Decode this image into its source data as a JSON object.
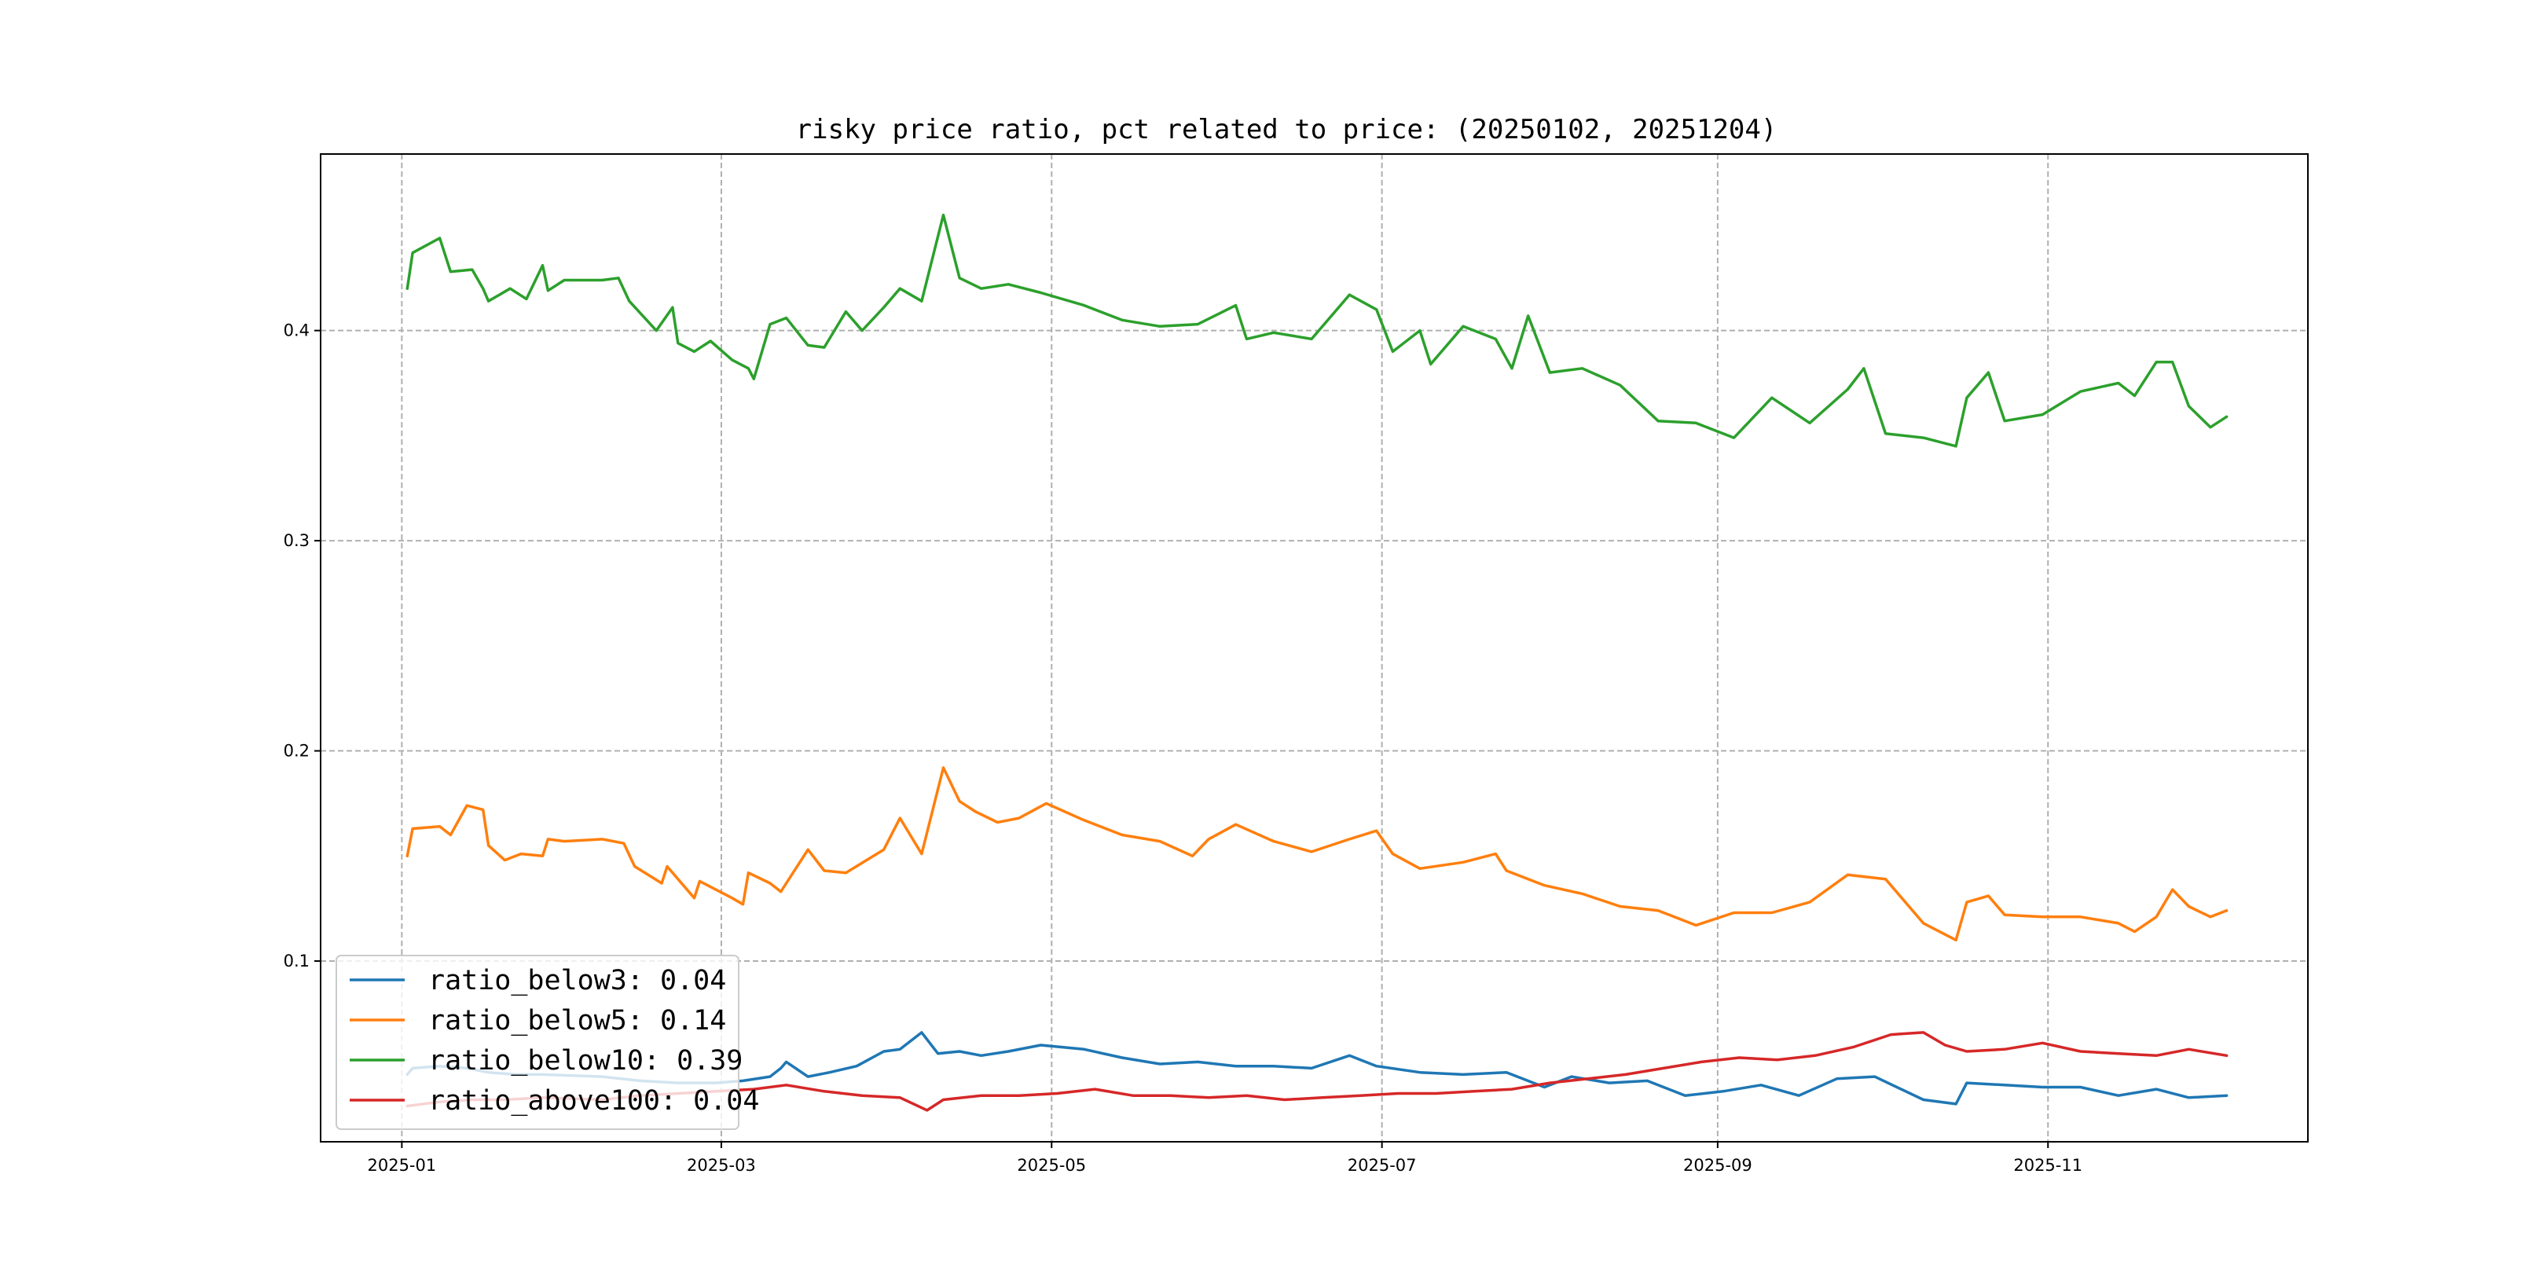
{
  "chart_data": {
    "type": "line",
    "title": "risky price ratio, pct related to price: (20250102, 20251204)",
    "xlabel": "",
    "ylabel": "",
    "x_range": [
      "2024-12-17",
      "2025-12-19"
    ],
    "ylim": [
      0.014,
      0.484
    ],
    "x_ticks": [
      "2025-01",
      "2025-03",
      "2025-05",
      "2025-07",
      "2025-09",
      "2025-11"
    ],
    "y_ticks": [
      "0.1",
      "0.2",
      "0.3",
      "0.4"
    ],
    "grid": true,
    "legend_position": "lower-left",
    "colors": {
      "ratio_below3": "#1f77b4",
      "ratio_below5": "#ff7f0e",
      "ratio_below10": "#2ca02c",
      "ratio_above100": "#d62728"
    },
    "series": [
      {
        "name": "ratio_below3",
        "legend": "ratio_below3: 0.04",
        "color": "#1f77b4",
        "points": [
          [
            "2025-01-02",
            0.046
          ],
          [
            "2025-01-03",
            0.049
          ],
          [
            "2025-01-08",
            0.05
          ],
          [
            "2025-01-13",
            0.049
          ],
          [
            "2025-01-17",
            0.047
          ],
          [
            "2025-01-22",
            0.046
          ],
          [
            "2025-01-27",
            0.046
          ],
          [
            "2025-02-07",
            0.045
          ],
          [
            "2025-02-14",
            0.043
          ],
          [
            "2025-02-21",
            0.042
          ],
          [
            "2025-02-28",
            0.042
          ],
          [
            "2025-03-05",
            0.043
          ],
          [
            "2025-03-10",
            0.045
          ],
          [
            "2025-03-12",
            0.049
          ],
          [
            "2025-03-13",
            0.052
          ],
          [
            "2025-03-17",
            0.045
          ],
          [
            "2025-03-21",
            0.047
          ],
          [
            "2025-03-26",
            0.05
          ],
          [
            "2025-03-31",
            0.057
          ],
          [
            "2025-04-03",
            0.058
          ],
          [
            "2025-04-07",
            0.066
          ],
          [
            "2025-04-10",
            0.056
          ],
          [
            "2025-04-14",
            0.057
          ],
          [
            "2025-04-18",
            0.055
          ],
          [
            "2025-04-23",
            0.057
          ],
          [
            "2025-04-29",
            0.06
          ],
          [
            "2025-05-07",
            0.058
          ],
          [
            "2025-05-14",
            0.054
          ],
          [
            "2025-05-21",
            0.051
          ],
          [
            "2025-05-28",
            0.052
          ],
          [
            "2025-06-04",
            0.05
          ],
          [
            "2025-06-11",
            0.05
          ],
          [
            "2025-06-18",
            0.049
          ],
          [
            "2025-06-25",
            0.055
          ],
          [
            "2025-06-30",
            0.05
          ],
          [
            "2025-07-08",
            0.047
          ],
          [
            "2025-07-16",
            0.046
          ],
          [
            "2025-07-24",
            0.047
          ],
          [
            "2025-07-31",
            0.04
          ],
          [
            "2025-08-05",
            0.045
          ],
          [
            "2025-08-12",
            0.042
          ],
          [
            "2025-08-19",
            0.043
          ],
          [
            "2025-08-26",
            0.036
          ],
          [
            "2025-09-02",
            0.038
          ],
          [
            "2025-09-09",
            0.041
          ],
          [
            "2025-09-16",
            0.036
          ],
          [
            "2025-09-23",
            0.044
          ],
          [
            "2025-09-30",
            0.045
          ],
          [
            "2025-10-09",
            0.034
          ],
          [
            "2025-10-15",
            0.032
          ],
          [
            "2025-10-17",
            0.042
          ],
          [
            "2025-10-24",
            0.041
          ],
          [
            "2025-10-31",
            0.04
          ],
          [
            "2025-11-07",
            0.04
          ],
          [
            "2025-11-14",
            0.036
          ],
          [
            "2025-11-21",
            0.039
          ],
          [
            "2025-11-27",
            0.035
          ],
          [
            "2025-12-04",
            0.036
          ]
        ]
      },
      {
        "name": "ratio_below5",
        "legend": "ratio_below5: 0.14",
        "color": "#ff7f0e",
        "points": [
          [
            "2025-01-02",
            0.15
          ],
          [
            "2025-01-03",
            0.163
          ],
          [
            "2025-01-08",
            0.164
          ],
          [
            "2025-01-10",
            0.16
          ],
          [
            "2025-01-13",
            0.174
          ],
          [
            "2025-01-16",
            0.172
          ],
          [
            "2025-01-17",
            0.155
          ],
          [
            "2025-01-20",
            0.148
          ],
          [
            "2025-01-23",
            0.151
          ],
          [
            "2025-01-27",
            0.15
          ],
          [
            "2025-01-28",
            0.158
          ],
          [
            "2025-01-31",
            0.157
          ],
          [
            "2025-02-07",
            0.158
          ],
          [
            "2025-02-11",
            0.156
          ],
          [
            "2025-02-13",
            0.145
          ],
          [
            "2025-02-18",
            0.137
          ],
          [
            "2025-02-19",
            0.145
          ],
          [
            "2025-02-24",
            0.13
          ],
          [
            "2025-02-25",
            0.138
          ],
          [
            "2025-03-03",
            0.13
          ],
          [
            "2025-03-05",
            0.127
          ],
          [
            "2025-03-06",
            0.142
          ],
          [
            "2025-03-10",
            0.137
          ],
          [
            "2025-03-12",
            0.133
          ],
          [
            "2025-03-17",
            0.153
          ],
          [
            "2025-03-20",
            0.143
          ],
          [
            "2025-03-24",
            0.142
          ],
          [
            "2025-03-31",
            0.153
          ],
          [
            "2025-04-03",
            0.168
          ],
          [
            "2025-04-07",
            0.151
          ],
          [
            "2025-04-11",
            0.192
          ],
          [
            "2025-04-14",
            0.176
          ],
          [
            "2025-04-17",
            0.171
          ],
          [
            "2025-04-21",
            0.166
          ],
          [
            "2025-04-25",
            0.168
          ],
          [
            "2025-04-30",
            0.175
          ],
          [
            "2025-05-07",
            0.167
          ],
          [
            "2025-05-14",
            0.16
          ],
          [
            "2025-05-21",
            0.157
          ],
          [
            "2025-05-27",
            0.15
          ],
          [
            "2025-05-30",
            0.158
          ],
          [
            "2025-06-04",
            0.165
          ],
          [
            "2025-06-11",
            0.157
          ],
          [
            "2025-06-18",
            0.152
          ],
          [
            "2025-06-25",
            0.158
          ],
          [
            "2025-06-30",
            0.162
          ],
          [
            "2025-07-03",
            0.151
          ],
          [
            "2025-07-08",
            0.144
          ],
          [
            "2025-07-16",
            0.147
          ],
          [
            "2025-07-22",
            0.151
          ],
          [
            "2025-07-24",
            0.143
          ],
          [
            "2025-07-31",
            0.136
          ],
          [
            "2025-08-07",
            0.132
          ],
          [
            "2025-08-14",
            0.126
          ],
          [
            "2025-08-21",
            0.124
          ],
          [
            "2025-08-28",
            0.117
          ],
          [
            "2025-09-04",
            0.123
          ],
          [
            "2025-09-11",
            0.123
          ],
          [
            "2025-09-18",
            0.128
          ],
          [
            "2025-09-25",
            0.141
          ],
          [
            "2025-10-02",
            0.139
          ],
          [
            "2025-10-09",
            0.118
          ],
          [
            "2025-10-15",
            0.11
          ],
          [
            "2025-10-17",
            0.128
          ],
          [
            "2025-10-21",
            0.131
          ],
          [
            "2025-10-24",
            0.122
          ],
          [
            "2025-10-31",
            0.121
          ],
          [
            "2025-11-07",
            0.121
          ],
          [
            "2025-11-14",
            0.118
          ],
          [
            "2025-11-17",
            0.114
          ],
          [
            "2025-11-21",
            0.121
          ],
          [
            "2025-11-24",
            0.134
          ],
          [
            "2025-11-27",
            0.126
          ],
          [
            "2025-12-01",
            0.121
          ],
          [
            "2025-12-04",
            0.124
          ]
        ]
      },
      {
        "name": "ratio_below10",
        "legend": "ratio_below10: 0.39",
        "color": "#2ca02c",
        "points": [
          [
            "2025-01-02",
            0.42
          ],
          [
            "2025-01-03",
            0.437
          ],
          [
            "2025-01-08",
            0.444
          ],
          [
            "2025-01-10",
            0.428
          ],
          [
            "2025-01-14",
            0.429
          ],
          [
            "2025-01-16",
            0.42
          ],
          [
            "2025-01-17",
            0.414
          ],
          [
            "2025-01-21",
            0.42
          ],
          [
            "2025-01-24",
            0.415
          ],
          [
            "2025-01-27",
            0.431
          ],
          [
            "2025-01-28",
            0.419
          ],
          [
            "2025-01-31",
            0.424
          ],
          [
            "2025-02-07",
            0.424
          ],
          [
            "2025-02-10",
            0.425
          ],
          [
            "2025-02-12",
            0.414
          ],
          [
            "2025-02-17",
            0.4
          ],
          [
            "2025-02-20",
            0.411
          ],
          [
            "2025-02-21",
            0.394
          ],
          [
            "2025-02-24",
            0.39
          ],
          [
            "2025-02-27",
            0.395
          ],
          [
            "2025-03-03",
            0.386
          ],
          [
            "2025-03-06",
            0.382
          ],
          [
            "2025-03-07",
            0.377
          ],
          [
            "2025-03-10",
            0.403
          ],
          [
            "2025-03-13",
            0.406
          ],
          [
            "2025-03-17",
            0.393
          ],
          [
            "2025-03-20",
            0.392
          ],
          [
            "2025-03-24",
            0.409
          ],
          [
            "2025-03-27",
            0.4
          ],
          [
            "2025-03-31",
            0.411
          ],
          [
            "2025-04-03",
            0.42
          ],
          [
            "2025-04-07",
            0.414
          ],
          [
            "2025-04-11",
            0.455
          ],
          [
            "2025-04-14",
            0.425
          ],
          [
            "2025-04-18",
            0.42
          ],
          [
            "2025-04-23",
            0.422
          ],
          [
            "2025-04-29",
            0.418
          ],
          [
            "2025-05-07",
            0.412
          ],
          [
            "2025-05-14",
            0.405
          ],
          [
            "2025-05-21",
            0.402
          ],
          [
            "2025-05-28",
            0.403
          ],
          [
            "2025-06-04",
            0.412
          ],
          [
            "2025-06-06",
            0.396
          ],
          [
            "2025-06-11",
            0.399
          ],
          [
            "2025-06-18",
            0.396
          ],
          [
            "2025-06-25",
            0.417
          ],
          [
            "2025-06-30",
            0.41
          ],
          [
            "2025-07-03",
            0.39
          ],
          [
            "2025-07-08",
            0.4
          ],
          [
            "2025-07-10",
            0.384
          ],
          [
            "2025-07-16",
            0.402
          ],
          [
            "2025-07-22",
            0.396
          ],
          [
            "2025-07-25",
            0.382
          ],
          [
            "2025-07-28",
            0.407
          ],
          [
            "2025-08-01",
            0.38
          ],
          [
            "2025-08-07",
            0.382
          ],
          [
            "2025-08-14",
            0.374
          ],
          [
            "2025-08-21",
            0.357
          ],
          [
            "2025-08-28",
            0.356
          ],
          [
            "2025-09-04",
            0.349
          ],
          [
            "2025-09-11",
            0.368
          ],
          [
            "2025-09-18",
            0.356
          ],
          [
            "2025-09-25",
            0.372
          ],
          [
            "2025-09-28",
            0.382
          ],
          [
            "2025-10-02",
            0.351
          ],
          [
            "2025-10-09",
            0.349
          ],
          [
            "2025-10-15",
            0.345
          ],
          [
            "2025-10-17",
            0.368
          ],
          [
            "2025-10-21",
            0.38
          ],
          [
            "2025-10-24",
            0.357
          ],
          [
            "2025-10-31",
            0.36
          ],
          [
            "2025-11-07",
            0.371
          ],
          [
            "2025-11-14",
            0.375
          ],
          [
            "2025-11-17",
            0.369
          ],
          [
            "2025-11-21",
            0.385
          ],
          [
            "2025-11-24",
            0.385
          ],
          [
            "2025-11-27",
            0.364
          ],
          [
            "2025-12-01",
            0.354
          ],
          [
            "2025-12-04",
            0.359
          ]
        ]
      },
      {
        "name": "ratio_above100",
        "legend": "ratio_above100: 0.04",
        "color": "#d62728",
        "points": [
          [
            "2025-01-02",
            0.031
          ],
          [
            "2025-01-08",
            0.033
          ],
          [
            "2025-01-14",
            0.034
          ],
          [
            "2025-01-20",
            0.034
          ],
          [
            "2025-01-27",
            0.035
          ],
          [
            "2025-02-07",
            0.034
          ],
          [
            "2025-02-14",
            0.036
          ],
          [
            "2025-02-21",
            0.037
          ],
          [
            "2025-02-28",
            0.038
          ],
          [
            "2025-03-07",
            0.039
          ],
          [
            "2025-03-13",
            0.041
          ],
          [
            "2025-03-20",
            0.038
          ],
          [
            "2025-03-27",
            0.036
          ],
          [
            "2025-04-03",
            0.035
          ],
          [
            "2025-04-08",
            0.029
          ],
          [
            "2025-04-11",
            0.034
          ],
          [
            "2025-04-18",
            0.036
          ],
          [
            "2025-04-25",
            0.036
          ],
          [
            "2025-05-02",
            0.037
          ],
          [
            "2025-05-09",
            0.039
          ],
          [
            "2025-05-16",
            0.036
          ],
          [
            "2025-05-23",
            0.036
          ],
          [
            "2025-05-30",
            0.035
          ],
          [
            "2025-06-06",
            0.036
          ],
          [
            "2025-06-13",
            0.034
          ],
          [
            "2025-06-20",
            0.035
          ],
          [
            "2025-06-27",
            0.036
          ],
          [
            "2025-07-04",
            0.037
          ],
          [
            "2025-07-11",
            0.037
          ],
          [
            "2025-07-18",
            0.038
          ],
          [
            "2025-07-25",
            0.039
          ],
          [
            "2025-08-01",
            0.042
          ],
          [
            "2025-08-08",
            0.044
          ],
          [
            "2025-08-15",
            0.046
          ],
          [
            "2025-08-22",
            0.049
          ],
          [
            "2025-08-29",
            0.052
          ],
          [
            "2025-09-05",
            0.054
          ],
          [
            "2025-09-12",
            0.053
          ],
          [
            "2025-09-19",
            0.055
          ],
          [
            "2025-09-26",
            0.059
          ],
          [
            "2025-10-03",
            0.065
          ],
          [
            "2025-10-09",
            0.066
          ],
          [
            "2025-10-13",
            0.06
          ],
          [
            "2025-10-17",
            0.057
          ],
          [
            "2025-10-24",
            0.058
          ],
          [
            "2025-10-31",
            0.061
          ],
          [
            "2025-11-07",
            0.057
          ],
          [
            "2025-11-14",
            0.056
          ],
          [
            "2025-11-21",
            0.055
          ],
          [
            "2025-11-27",
            0.058
          ],
          [
            "2025-12-04",
            0.055
          ]
        ]
      }
    ]
  }
}
